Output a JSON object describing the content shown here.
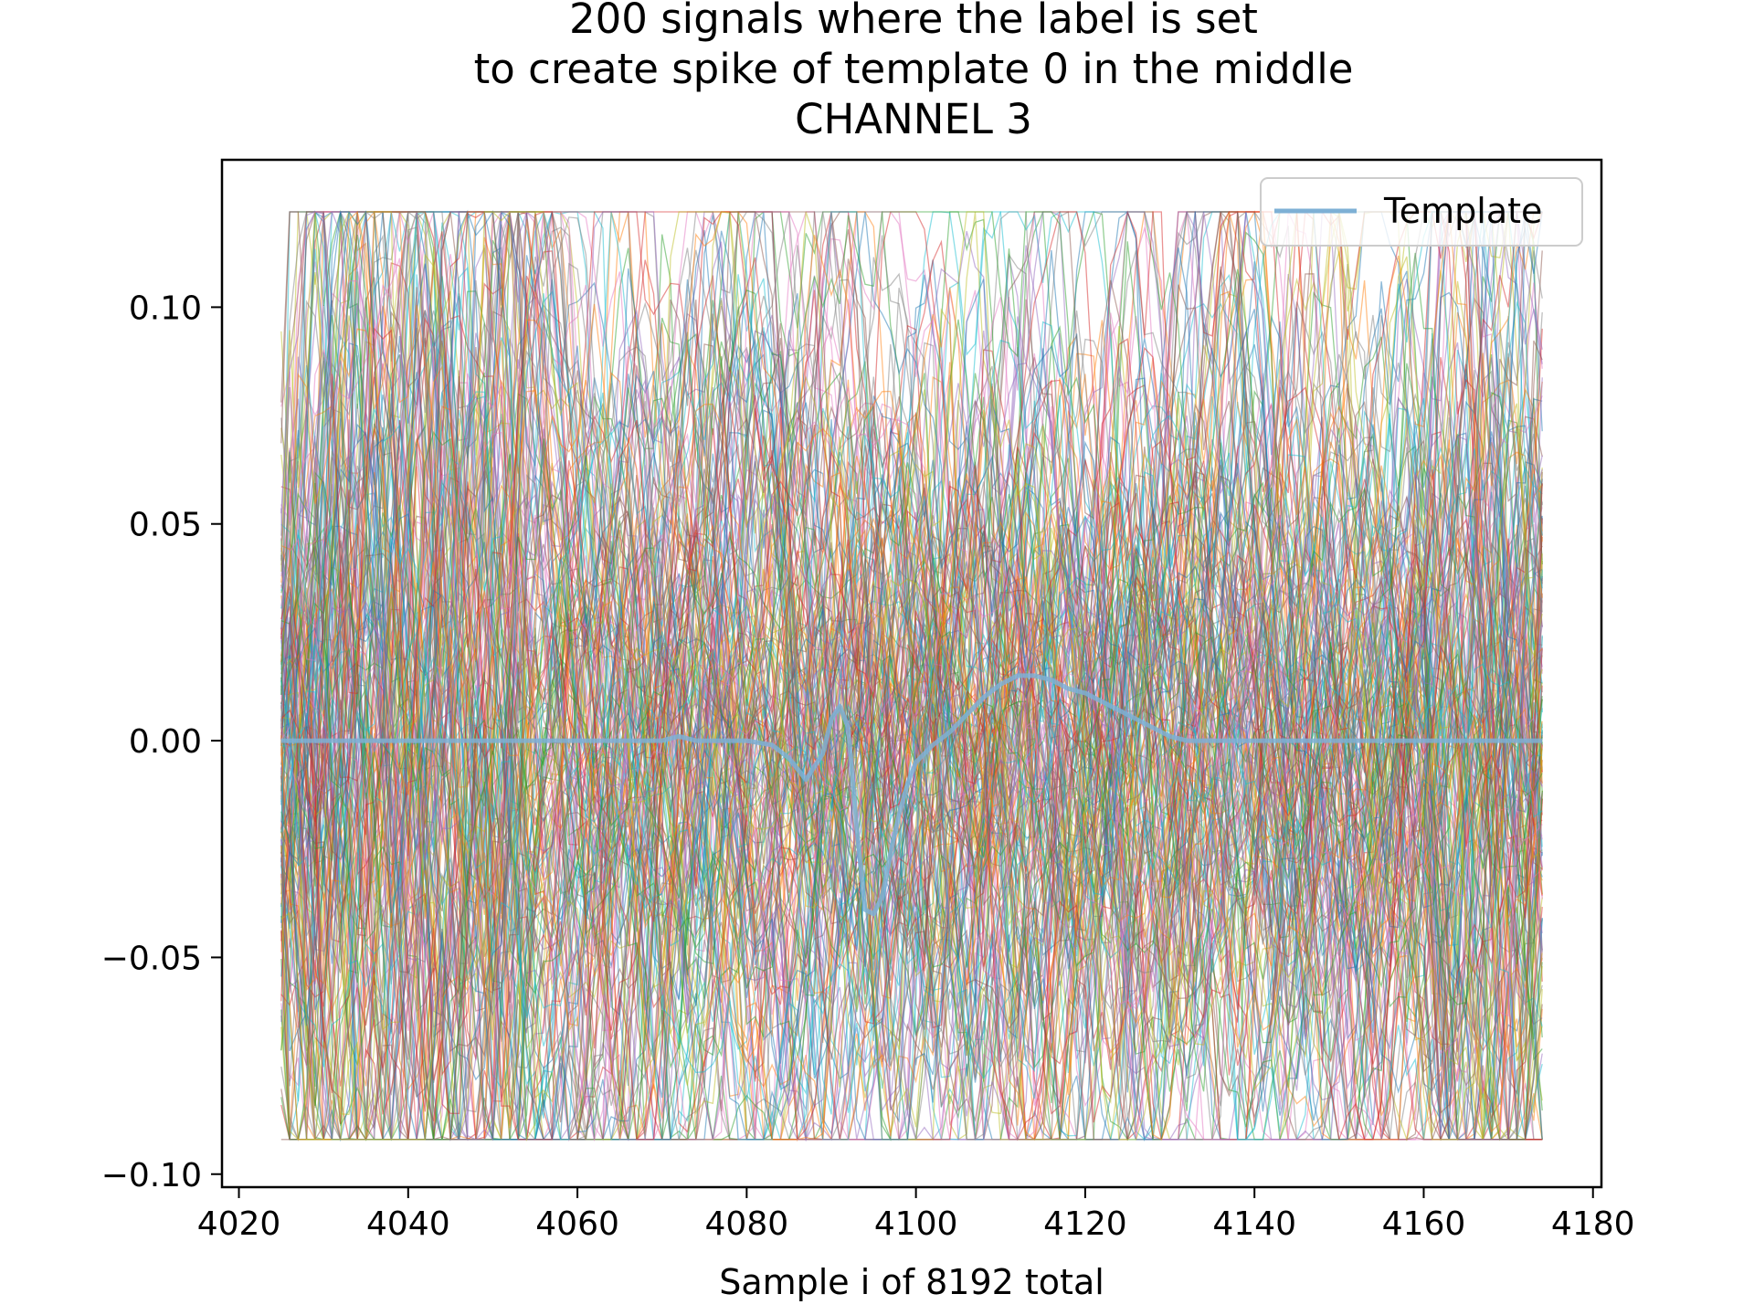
{
  "chart_data": {
    "type": "line",
    "title_lines": [
      "200 signals where the label is set",
      "to create spike of template 0 in the middle",
      "CHANNEL 3"
    ],
    "xlabel": "Sample i of 8192 total",
    "ylabel": "",
    "xlim": [
      4018,
      4181
    ],
    "ylim": [
      -0.103,
      0.134
    ],
    "x_ticks": [
      4020,
      4040,
      4060,
      4080,
      4100,
      4120,
      4140,
      4160,
      4180
    ],
    "x_tick_labels": [
      "4020",
      "4040",
      "4060",
      "4080",
      "4100",
      "4120",
      "4140",
      "4160",
      "4180"
    ],
    "y_ticks": [
      0.1,
      0.05,
      0.0,
      -0.05,
      -0.1
    ],
    "y_tick_labels": [
      "0.10",
      "0.05",
      "0.00",
      "−0.05",
      "−0.10"
    ],
    "grid": false,
    "legend": {
      "position": "top-right",
      "entries": [
        "Template"
      ]
    },
    "signals": {
      "count": 200,
      "x_start": 4025,
      "x_end": 4174,
      "typical_range": [
        -0.09,
        0.12
      ],
      "style": "thin translucent multi-colored lines"
    },
    "template_series": {
      "name": "Template",
      "color": "#7eb0d5",
      "x": [
        4025,
        4070,
        4072,
        4074,
        4080,
        4083,
        4085,
        4087,
        4089,
        4090,
        4091,
        4092,
        4093,
        4094,
        4095,
        4096,
        4097,
        4098,
        4099,
        4100,
        4102,
        4104,
        4106,
        4108,
        4110,
        4112,
        4114,
        4116,
        4118,
        4120,
        4122,
        4124,
        4126,
        4128,
        4130,
        4132,
        4134,
        4174
      ],
      "values": [
        0.0,
        0.0,
        0.001,
        0.0,
        0.0,
        -0.001,
        -0.004,
        -0.009,
        -0.003,
        0.005,
        0.008,
        0.003,
        -0.02,
        -0.039,
        -0.04,
        -0.036,
        -0.026,
        -0.017,
        -0.01,
        -0.005,
        -0.001,
        0.002,
        0.006,
        0.01,
        0.013,
        0.015,
        0.015,
        0.014,
        0.012,
        0.011,
        0.009,
        0.007,
        0.005,
        0.003,
        0.001,
        0.0,
        0.0,
        0.0
      ]
    },
    "colors": [
      "#1f77b4",
      "#ff7f0e",
      "#2ca02c",
      "#d62728",
      "#9467bd",
      "#8c564b",
      "#e377c2",
      "#7f7f7f",
      "#bcbd22",
      "#17becf"
    ]
  }
}
